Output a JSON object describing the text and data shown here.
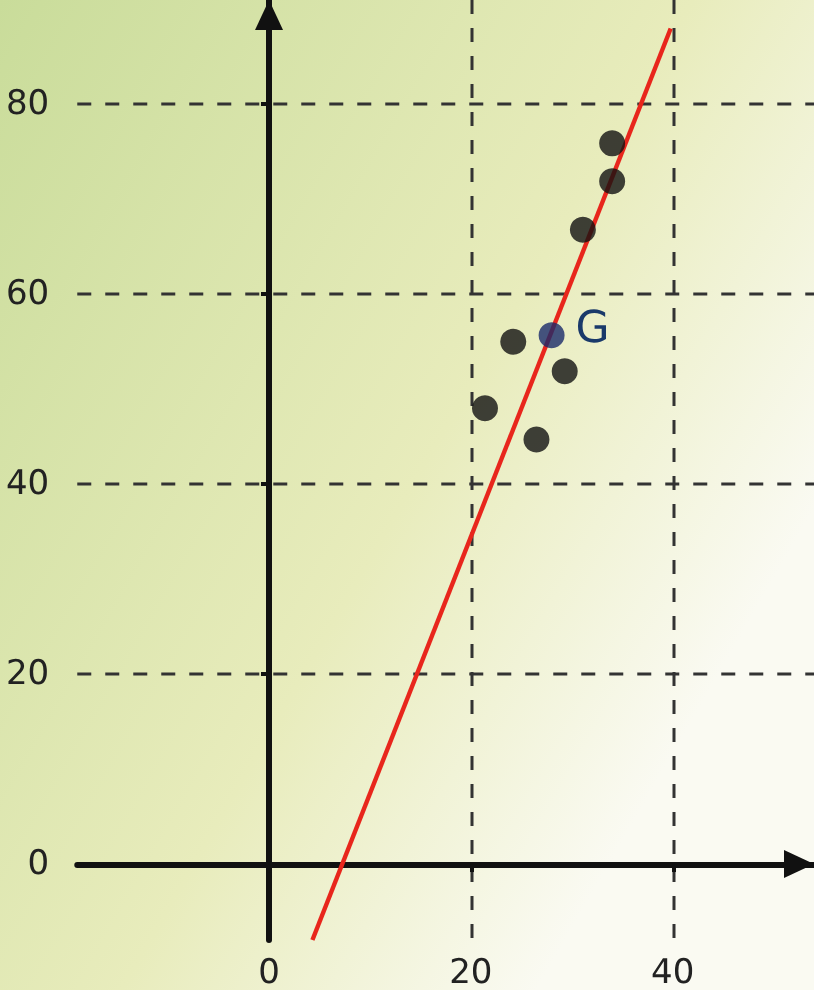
{
  "chart_data": {
    "type": "scatter",
    "xlim": [
      -19,
      54
    ],
    "ylim": [
      -8,
      91
    ],
    "xticks": [
      0,
      20,
      40
    ],
    "yticks": [
      0,
      20,
      40,
      60,
      80
    ],
    "grid": true,
    "series": [
      {
        "x": [
          21.4,
          24.2,
          26.5,
          28.0,
          29.3,
          31.1,
          34.0,
          34.0
        ],
        "values": [
          48,
          55,
          44.7,
          55.7,
          51.9,
          66.8,
          71.9,
          75.9
        ],
        "colors": [
          "#111111",
          "#111111",
          "#111111",
          "#1a2a6a",
          "#111111",
          "#111111",
          "#111111",
          "#111111"
        ],
        "marker": "circle"
      },
      {
        "type": "line",
        "x": [
          4.3,
          39.8
        ],
        "values": [
          -8,
          88
        ],
        "color": "#e8261c",
        "marker": "none"
      }
    ],
    "annotations": [
      {
        "text": "G",
        "x": 28.0,
        "y": 55.7
      }
    ]
  }
}
